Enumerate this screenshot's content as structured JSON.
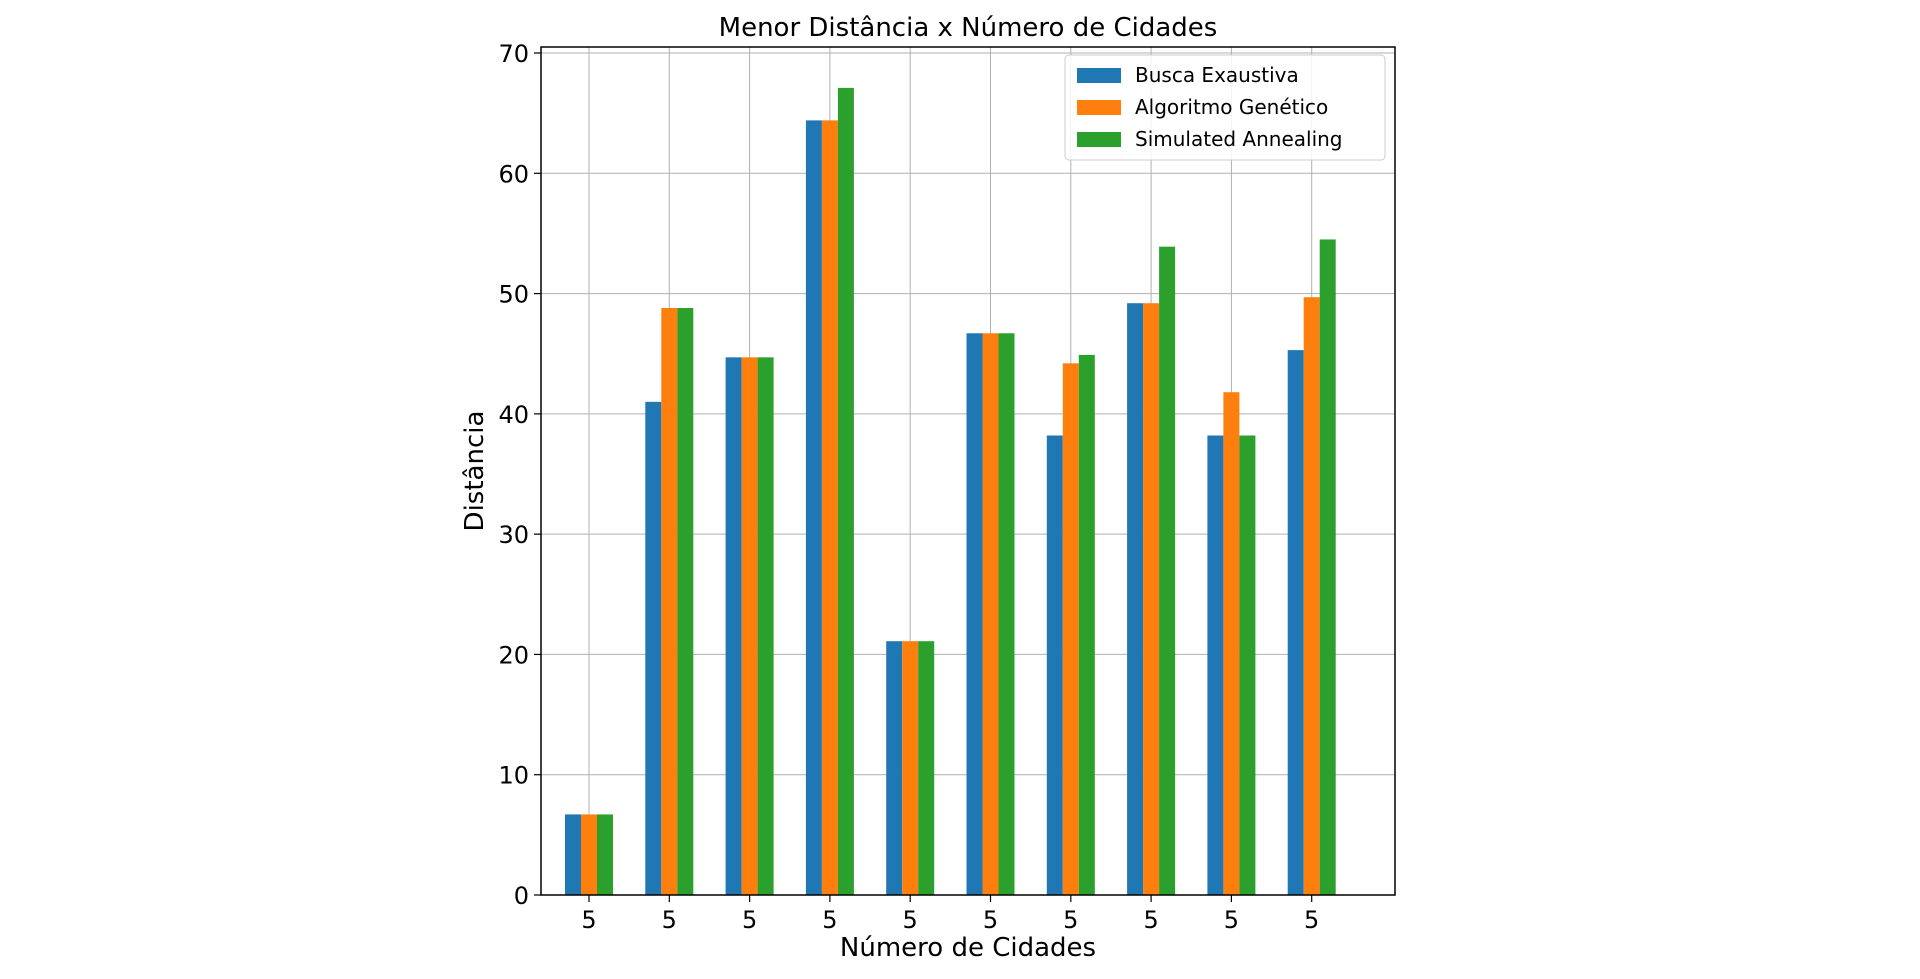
{
  "chart_data": {
    "type": "bar",
    "title": "Menor Distância x Número de Cidades",
    "xlabel": "Número de Cidades",
    "ylabel": "Distância",
    "ylim": [
      0,
      70.5
    ],
    "yticks": [
      0,
      10,
      20,
      30,
      40,
      50,
      60,
      70
    ],
    "grid": true,
    "legend_position": "top-right",
    "categories": [
      "5",
      "5",
      "5",
      "5",
      "5",
      "5",
      "5",
      "5",
      "5",
      "5"
    ],
    "series": [
      {
        "name": "Busca Exaustiva",
        "color": "#1f77b4",
        "values": [
          6.7,
          41.0,
          44.7,
          64.4,
          21.1,
          46.7,
          38.2,
          49.2,
          38.2,
          45.3
        ]
      },
      {
        "name": "Algoritmo Genético",
        "color": "#ff7f0e",
        "values": [
          6.7,
          48.8,
          44.7,
          64.4,
          21.1,
          46.7,
          44.2,
          49.2,
          41.8,
          49.7
        ]
      },
      {
        "name": "Simulated Annealing",
        "color": "#2ca02c",
        "values": [
          6.7,
          48.8,
          44.7,
          67.1,
          21.1,
          46.7,
          44.9,
          53.9,
          38.2,
          54.5
        ]
      }
    ]
  }
}
